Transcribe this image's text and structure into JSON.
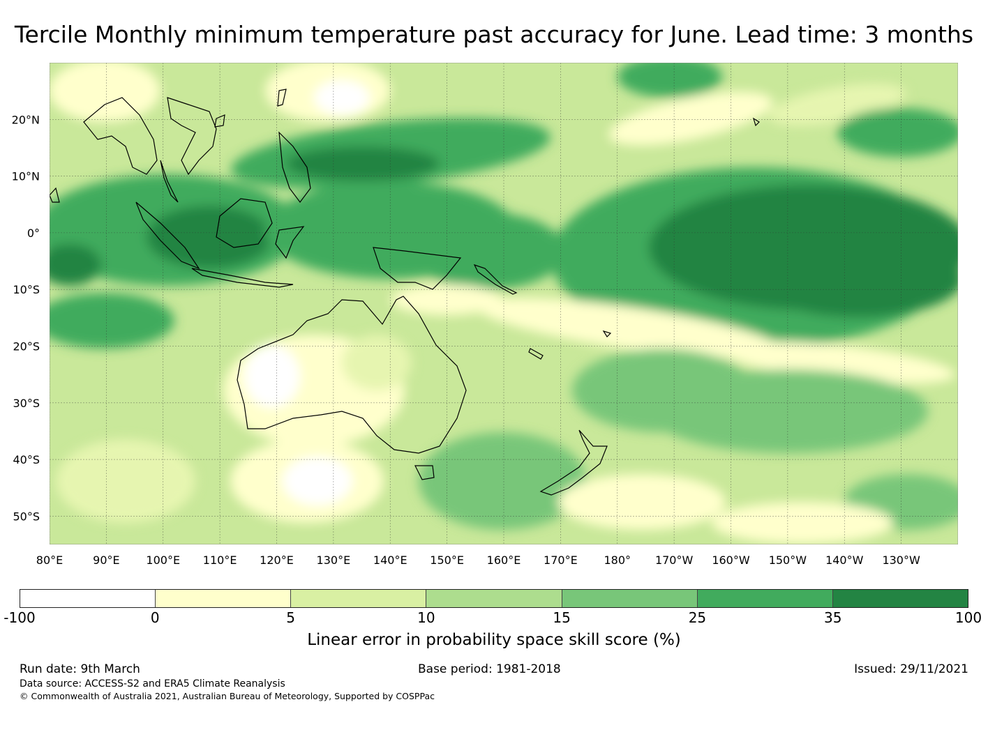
{
  "title": "Tercile Monthly minimum temperature past accuracy for June. Lead time: 3 months",
  "map": {
    "region": "Western Pacific / Australia",
    "lon_range": [
      80,
      240
    ],
    "lat_range": [
      -55,
      30
    ],
    "lat_ticks": [
      {
        "label": "20°N",
        "lat": 20
      },
      {
        "label": "10°N",
        "lat": 10
      },
      {
        "label": "0°",
        "lat": 0
      },
      {
        "label": "10°S",
        "lat": -10
      },
      {
        "label": "20°S",
        "lat": -20
      },
      {
        "label": "30°S",
        "lat": -30
      },
      {
        "label": "40°S",
        "lat": -40
      },
      {
        "label": "50°S",
        "lat": -50
      }
    ],
    "lon_ticks": [
      {
        "label": "80°E",
        "lon": 80
      },
      {
        "label": "90°E",
        "lon": 90
      },
      {
        "label": "100°E",
        "lon": 100
      },
      {
        "label": "110°E",
        "lon": 110
      },
      {
        "label": "120°E",
        "lon": 120
      },
      {
        "label": "130°E",
        "lon": 130
      },
      {
        "label": "140°E",
        "lon": 140
      },
      {
        "label": "150°E",
        "lon": 150
      },
      {
        "label": "160°E",
        "lon": 160
      },
      {
        "label": "170°E",
        "lon": 170
      },
      {
        "label": "180°",
        "lon": 180
      },
      {
        "label": "170°W",
        "lon": 190
      },
      {
        "label": "160°W",
        "lon": 200
      },
      {
        "label": "150°W",
        "lon": 210
      },
      {
        "label": "140°W",
        "lon": 220
      },
      {
        "label": "130°W",
        "lon": 230
      }
    ]
  },
  "colorbar": {
    "ticks": [
      "-100",
      "0",
      "5",
      "10",
      "15",
      "25",
      "35",
      "100"
    ],
    "colors": [
      "#ffffff",
      "#ffffcc",
      "#d9f0a3",
      "#addd8e",
      "#78c679",
      "#41ab5d",
      "#238443"
    ],
    "label": "Linear error in probability space skill score (%)"
  },
  "footer": {
    "run_date": "Run date: 9th March",
    "base_period": "Base period: 1981-2018",
    "issued": "Issued: 29/11/2021",
    "data_source": "Data source: ACCESS-S2 and ERA5 Climate Reanalysis",
    "copyright": "© Commonwealth of Australia 2021, Australian Bureau of Meteorology, Supported by COSPPac"
  }
}
